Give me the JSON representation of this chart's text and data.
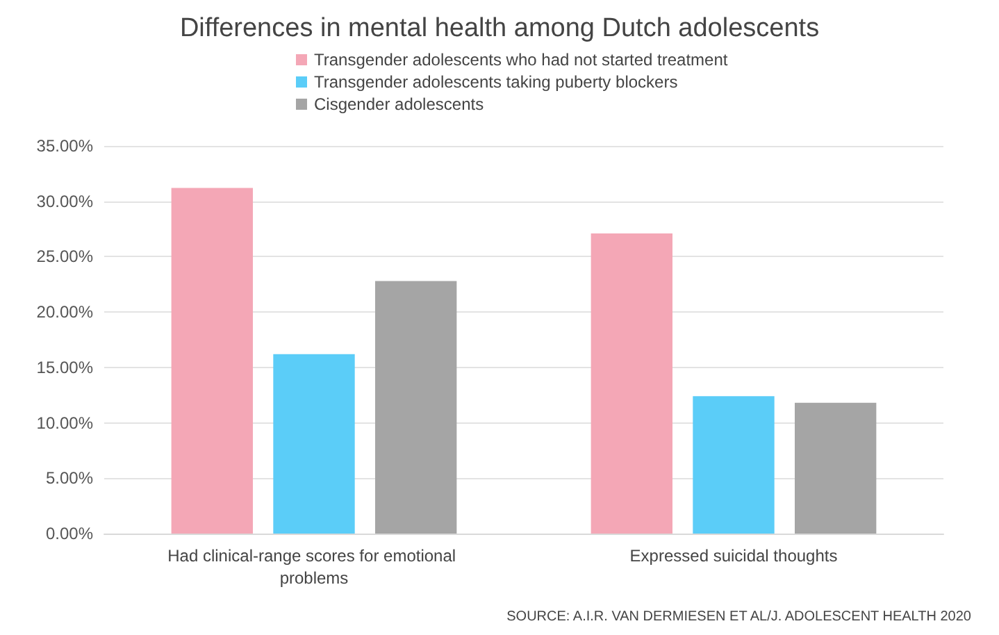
{
  "chart_data": {
    "type": "bar",
    "title": "Differences in mental health among Dutch adolescents",
    "categories": [
      "Had clinical-range scores for emotional problems",
      "Expressed suicidal thoughts"
    ],
    "series": [
      {
        "name": "Transgender adolescents who had not started treatment",
        "color": "#f4a7b6",
        "values": [
          31.2,
          27.1
        ]
      },
      {
        "name": "Transgender adolescents taking puberty blockers",
        "color": "#5bcdf8",
        "values": [
          16.2,
          12.4
        ]
      },
      {
        "name": "Cisgender adolescents",
        "color": "#a5a5a5",
        "values": [
          22.8,
          11.8
        ]
      }
    ],
    "ylim": [
      0,
      35
    ],
    "yticks": [
      {
        "value": 0,
        "label": "0.00%"
      },
      {
        "value": 5,
        "label": "5.00%"
      },
      {
        "value": 10,
        "label": "10.00%"
      },
      {
        "value": 15,
        "label": "15.00%"
      },
      {
        "value": 20,
        "label": "20.00%"
      },
      {
        "value": 25,
        "label": "25.00%"
      },
      {
        "value": 30,
        "label": "30.00%"
      },
      {
        "value": 35,
        "label": "35.00%"
      }
    ],
    "grid": "y",
    "legend": "top",
    "annotations": [
      "SOURCE: A.I.R. VAN DERMIESEN ET AL/J. ADOLESCENT HEALTH 2020"
    ]
  }
}
